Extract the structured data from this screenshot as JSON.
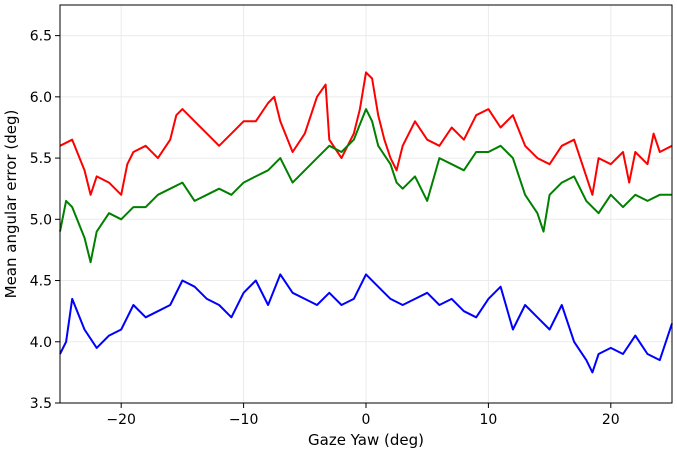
{
  "chart_data": {
    "type": "line",
    "title": "",
    "xlabel": "Gaze Yaw (deg)",
    "ylabel": "Mean angular error (deg)",
    "xlim": [
      -25,
      25
    ],
    "ylim": [
      3.5,
      6.75
    ],
    "xticks": [
      -20,
      -10,
      0,
      10,
      20
    ],
    "xtick_labels": [
      "−20",
      "−10",
      "0",
      "10",
      "20"
    ],
    "yticks": [
      3.5,
      4.0,
      4.5,
      5.0,
      5.5,
      6.0,
      6.5
    ],
    "ytick_labels": [
      "3.5",
      "4.0",
      "4.5",
      "5.0",
      "5.5",
      "6.0",
      "6.5"
    ],
    "grid": true,
    "legend": "none",
    "series": [
      {
        "color": "#ff0000",
        "x": [
          -25,
          -24,
          -23,
          -22.5,
          -22,
          -21,
          -20,
          -19.5,
          -19,
          -18,
          -17,
          -16,
          -15.5,
          -15,
          -14,
          -13,
          -12,
          -11,
          -10,
          -9,
          -8,
          -7.5,
          -7,
          -6,
          -5,
          -4,
          -3.3,
          -3,
          -2,
          -1,
          -0.5,
          0,
          0.5,
          1,
          1.5,
          2,
          2.5,
          3,
          4,
          5,
          6,
          7,
          8,
          9,
          10,
          11,
          12,
          13,
          14,
          15,
          16,
          17,
          18,
          18.5,
          19,
          20,
          21,
          21.5,
          22,
          23,
          23.5,
          24,
          25
        ],
        "y": [
          5.6,
          5.65,
          5.4,
          5.2,
          5.35,
          5.3,
          5.2,
          5.45,
          5.55,
          5.6,
          5.5,
          5.65,
          5.85,
          5.9,
          5.8,
          5.7,
          5.6,
          5.7,
          5.8,
          5.8,
          5.95,
          6.0,
          5.8,
          5.55,
          5.7,
          6.0,
          6.1,
          5.65,
          5.5,
          5.7,
          5.9,
          6.2,
          6.15,
          5.85,
          5.65,
          5.5,
          5.4,
          5.6,
          5.8,
          5.65,
          5.6,
          5.75,
          5.65,
          5.85,
          5.9,
          5.75,
          5.85,
          5.6,
          5.5,
          5.45,
          5.6,
          5.65,
          5.35,
          5.2,
          5.5,
          5.45,
          5.55,
          5.3,
          5.55,
          5.45,
          5.7,
          5.55,
          5.6
        ]
      },
      {
        "color": "#008000",
        "x": [
          -25,
          -24.5,
          -24,
          -23,
          -22.5,
          -22,
          -21,
          -20,
          -19,
          -18,
          -17,
          -16,
          -15,
          -14,
          -13,
          -12,
          -11,
          -10,
          -9,
          -8,
          -7,
          -6,
          -5,
          -4,
          -3,
          -2,
          -1,
          0,
          0.5,
          1,
          2,
          2.5,
          3,
          4,
          5,
          6,
          7,
          8,
          9,
          10,
          11,
          12,
          13,
          14,
          14.5,
          15,
          16,
          17,
          18,
          19,
          20,
          21,
          22,
          23,
          24,
          25
        ],
        "y": [
          4.9,
          5.15,
          5.1,
          4.85,
          4.65,
          4.9,
          5.05,
          5.0,
          5.1,
          5.1,
          5.2,
          5.25,
          5.3,
          5.15,
          5.2,
          5.25,
          5.2,
          5.3,
          5.35,
          5.4,
          5.5,
          5.3,
          5.4,
          5.5,
          5.6,
          5.55,
          5.65,
          5.9,
          5.8,
          5.6,
          5.45,
          5.3,
          5.25,
          5.35,
          5.15,
          5.5,
          5.45,
          5.4,
          5.55,
          5.55,
          5.6,
          5.5,
          5.2,
          5.05,
          4.9,
          5.2,
          5.3,
          5.35,
          5.15,
          5.05,
          5.2,
          5.1,
          5.2,
          5.15,
          5.2,
          5.2
        ]
      },
      {
        "color": "#0000ff",
        "x": [
          -25,
          -24.5,
          -24,
          -23,
          -22,
          -21,
          -20,
          -19,
          -18,
          -17,
          -16,
          -15,
          -14,
          -13,
          -12,
          -11,
          -10,
          -9,
          -8,
          -7,
          -6,
          -5,
          -4,
          -3,
          -2,
          -1,
          0,
          1,
          2,
          3,
          4,
          5,
          6,
          7,
          8,
          9,
          10,
          11,
          12,
          13,
          14,
          15,
          16,
          17,
          18,
          18.5,
          19,
          20,
          21,
          22,
          23,
          24,
          25
        ],
        "y": [
          3.9,
          4.0,
          4.35,
          4.1,
          3.95,
          4.05,
          4.1,
          4.3,
          4.2,
          4.25,
          4.3,
          4.5,
          4.45,
          4.35,
          4.3,
          4.2,
          4.4,
          4.5,
          4.3,
          4.55,
          4.4,
          4.35,
          4.3,
          4.4,
          4.3,
          4.35,
          4.55,
          4.45,
          4.35,
          4.3,
          4.35,
          4.4,
          4.3,
          4.35,
          4.25,
          4.2,
          4.35,
          4.45,
          4.1,
          4.3,
          4.2,
          4.1,
          4.3,
          4.0,
          3.85,
          3.75,
          3.9,
          3.95,
          3.9,
          4.05,
          3.9,
          3.85,
          4.15
        ]
      }
    ]
  }
}
